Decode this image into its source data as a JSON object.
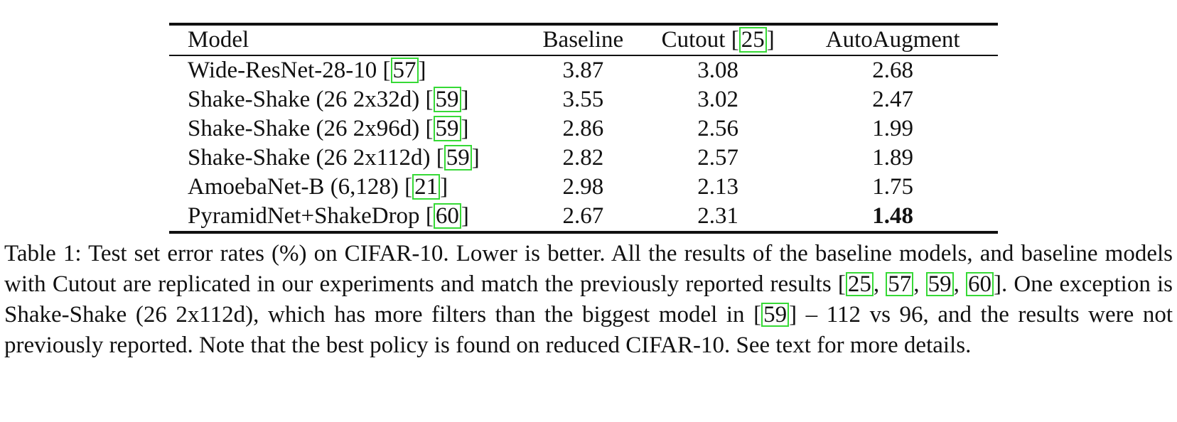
{
  "table": {
    "headers": {
      "model": "Model",
      "baseline": "Baseline",
      "cutout": "Cutout",
      "cutout_ref": "25",
      "autoaugment": "AutoAugment"
    },
    "rows": [
      {
        "model": "Wide-ResNet-28-10",
        "ref": "57",
        "baseline": "3.87",
        "cutout": "3.08",
        "autoaugment": "2.68"
      },
      {
        "model": "Shake-Shake (26 2x32d)",
        "ref": "59",
        "baseline": "3.55",
        "cutout": "3.02",
        "autoaugment": "2.47"
      },
      {
        "model": "Shake-Shake (26 2x96d)",
        "ref": "59",
        "baseline": "2.86",
        "cutout": "2.56",
        "autoaugment": "1.99"
      },
      {
        "model": "Shake-Shake (26 2x112d)",
        "ref": "59",
        "baseline": "2.82",
        "cutout": "2.57",
        "autoaugment": "1.89"
      },
      {
        "model": "AmoebaNet-B (6,128)",
        "ref": "21",
        "baseline": "2.98",
        "cutout": "2.13",
        "autoaugment": "1.75"
      },
      {
        "model": "PyramidNet+ShakeDrop",
        "ref": "60",
        "baseline": "2.67",
        "cutout": "2.31",
        "autoaugment": "1.48"
      }
    ]
  },
  "caption": {
    "part1": "Table 1: Test set error rates (%) on CIFAR-10. Lower is better. All the results of the baseline models, and baseline models with Cutout are replicated in our experiments and match the previously reported results [",
    "refs1": [
      "25",
      "57",
      "59",
      "60"
    ],
    "part2": "]. One exception is Shake-Shake (26 2x112d), which has more filters than the biggest model in [",
    "ref2": "59",
    "part3": "] – 112 vs 96, and the results were not previously reported. Note that the best policy is found on reduced CIFAR-10. See text for more details."
  },
  "colors": {
    "citation_box": "#36d936",
    "rule": "#111111"
  }
}
